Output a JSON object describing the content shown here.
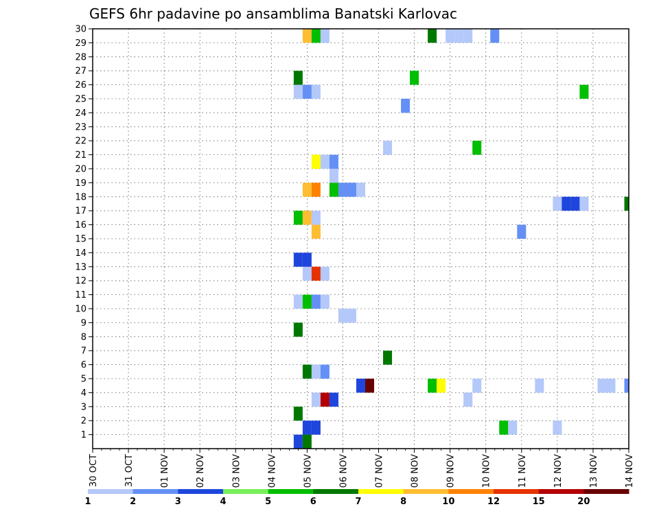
{
  "chart_data": {
    "type": "heatmap",
    "title": "GEFS 6hr padavine po ansamblima Banatski Karlovac",
    "xlabel": "",
    "ylabel": "",
    "x_tick_labels": [
      "30 OCT",
      "31 OCT",
      "01 NOV",
      "02 NOV",
      "03 NOV",
      "04 NOV",
      "05 NOV",
      "06 NOV",
      "07 NOV",
      "08 NOV",
      "09 NOV",
      "10 NOV",
      "11 NOV",
      "12 NOV",
      "13 NOV",
      "14 NOV"
    ],
    "y_tick_labels": [
      "1",
      "2",
      "3",
      "4",
      "5",
      "6",
      "7",
      "8",
      "9",
      "10",
      "11",
      "12",
      "13",
      "14",
      "15",
      "16",
      "17",
      "18",
      "19",
      "20",
      "21",
      "22",
      "23",
      "24",
      "25",
      "26",
      "27",
      "28",
      "29",
      "30"
    ],
    "x_range_steps": [
      0,
      60
    ],
    "steps_per_day": 4,
    "y_range": [
      0,
      30
    ],
    "grid": "dotted",
    "legend": {
      "placement": "bottom",
      "labels": [
        "1",
        "2",
        "3",
        "4",
        "5",
        "6",
        "7",
        "8",
        "10",
        "12",
        "15",
        "20"
      ],
      "colors": [
        "#b4c8fa",
        "#6490f5",
        "#1e46dc",
        "#78ee5a",
        "#00be00",
        "#007800",
        "#ffff00",
        "#ffbe32",
        "#ff8200",
        "#e63200",
        "#b40000",
        "#690000"
      ]
    },
    "cells": [
      {
        "step": 23,
        "row": 0,
        "value": 3
      },
      {
        "step": 24,
        "row": 0,
        "value": 6
      },
      {
        "step": 24,
        "row": 1,
        "value": 3
      },
      {
        "step": 25,
        "row": 1,
        "value": 3
      },
      {
        "step": 23,
        "row": 2,
        "value": 6
      },
      {
        "step": 25,
        "row": 3,
        "value": 1
      },
      {
        "step": 26,
        "row": 3,
        "value": 15
      },
      {
        "step": 27,
        "row": 3,
        "value": 3
      },
      {
        "step": 30,
        "row": 4,
        "value": 3
      },
      {
        "step": 31,
        "row": 4,
        "value": 20
      },
      {
        "step": 38,
        "row": 4,
        "value": 5
      },
      {
        "step": 39,
        "row": 4,
        "value": 7
      },
      {
        "step": 43,
        "row": 4,
        "value": 1
      },
      {
        "step": 50,
        "row": 4,
        "value": 1
      },
      {
        "step": 57,
        "row": 4,
        "value": 1
      },
      {
        "step": 58,
        "row": 4,
        "value": 1
      },
      {
        "step": 60,
        "row": 4,
        "value": 2
      },
      {
        "step": 42,
        "row": 3,
        "value": 1
      },
      {
        "step": 46,
        "row": 1,
        "value": 5
      },
      {
        "step": 47,
        "row": 1,
        "value": 1
      },
      {
        "step": 52,
        "row": 1,
        "value": 1
      },
      {
        "step": 24,
        "row": 5,
        "value": 6
      },
      {
        "step": 25,
        "row": 5,
        "value": 1
      },
      {
        "step": 26,
        "row": 5,
        "value": 2
      },
      {
        "step": 33,
        "row": 6,
        "value": 6
      },
      {
        "step": 23,
        "row": 8,
        "value": 6
      },
      {
        "step": 28,
        "row": 9,
        "value": 1
      },
      {
        "step": 29,
        "row": 9,
        "value": 1
      },
      {
        "step": 23,
        "row": 10,
        "value": 1
      },
      {
        "step": 24,
        "row": 10,
        "value": 5
      },
      {
        "step": 25,
        "row": 10,
        "value": 2
      },
      {
        "step": 26,
        "row": 10,
        "value": 1
      },
      {
        "step": 24,
        "row": 12,
        "value": 1
      },
      {
        "step": 25,
        "row": 12,
        "value": 12
      },
      {
        "step": 26,
        "row": 12,
        "value": 1
      },
      {
        "step": 23,
        "row": 13,
        "value": 3
      },
      {
        "step": 24,
        "row": 13,
        "value": 3
      },
      {
        "step": 25,
        "row": 15,
        "value": 8
      },
      {
        "step": 48,
        "row": 15,
        "value": 2
      },
      {
        "step": 23,
        "row": 16,
        "value": 5
      },
      {
        "step": 24,
        "row": 16,
        "value": 8
      },
      {
        "step": 25,
        "row": 16,
        "value": 1
      },
      {
        "step": 52,
        "row": 17,
        "value": 1
      },
      {
        "step": 53,
        "row": 17,
        "value": 3
      },
      {
        "step": 54,
        "row": 17,
        "value": 3
      },
      {
        "step": 55,
        "row": 17,
        "value": 1
      },
      {
        "step": 60,
        "row": 17,
        "value": 6
      },
      {
        "step": 24,
        "row": 18,
        "value": 8
      },
      {
        "step": 25,
        "row": 18,
        "value": 10
      },
      {
        "step": 27,
        "row": 18,
        "value": 5
      },
      {
        "step": 28,
        "row": 18,
        "value": 2
      },
      {
        "step": 29,
        "row": 18,
        "value": 2
      },
      {
        "step": 30,
        "row": 18,
        "value": 1
      },
      {
        "step": 27,
        "row": 19,
        "value": 1
      },
      {
        "step": 25,
        "row": 20,
        "value": 7
      },
      {
        "step": 26,
        "row": 20,
        "value": 1
      },
      {
        "step": 27,
        "row": 20,
        "value": 2
      },
      {
        "step": 33,
        "row": 21,
        "value": 1
      },
      {
        "step": 43,
        "row": 21,
        "value": 5
      },
      {
        "step": 35,
        "row": 24,
        "value": 2
      },
      {
        "step": 23,
        "row": 25,
        "value": 1
      },
      {
        "step": 24,
        "row": 25,
        "value": 2
      },
      {
        "step": 25,
        "row": 25,
        "value": 1
      },
      {
        "step": 55,
        "row": 25,
        "value": 5
      },
      {
        "step": 23,
        "row": 26,
        "value": 6
      },
      {
        "step": 36,
        "row": 26,
        "value": 5
      },
      {
        "step": 24,
        "row": 29,
        "value": 8
      },
      {
        "step": 25,
        "row": 29,
        "value": 5
      },
      {
        "step": 26,
        "row": 29,
        "value": 1
      },
      {
        "step": 38,
        "row": 29,
        "value": 6
      },
      {
        "step": 40,
        "row": 29,
        "value": 1
      },
      {
        "step": 41,
        "row": 29,
        "value": 1
      },
      {
        "step": 42,
        "row": 29,
        "value": 1
      },
      {
        "step": 45,
        "row": 29,
        "value": 2
      }
    ]
  }
}
